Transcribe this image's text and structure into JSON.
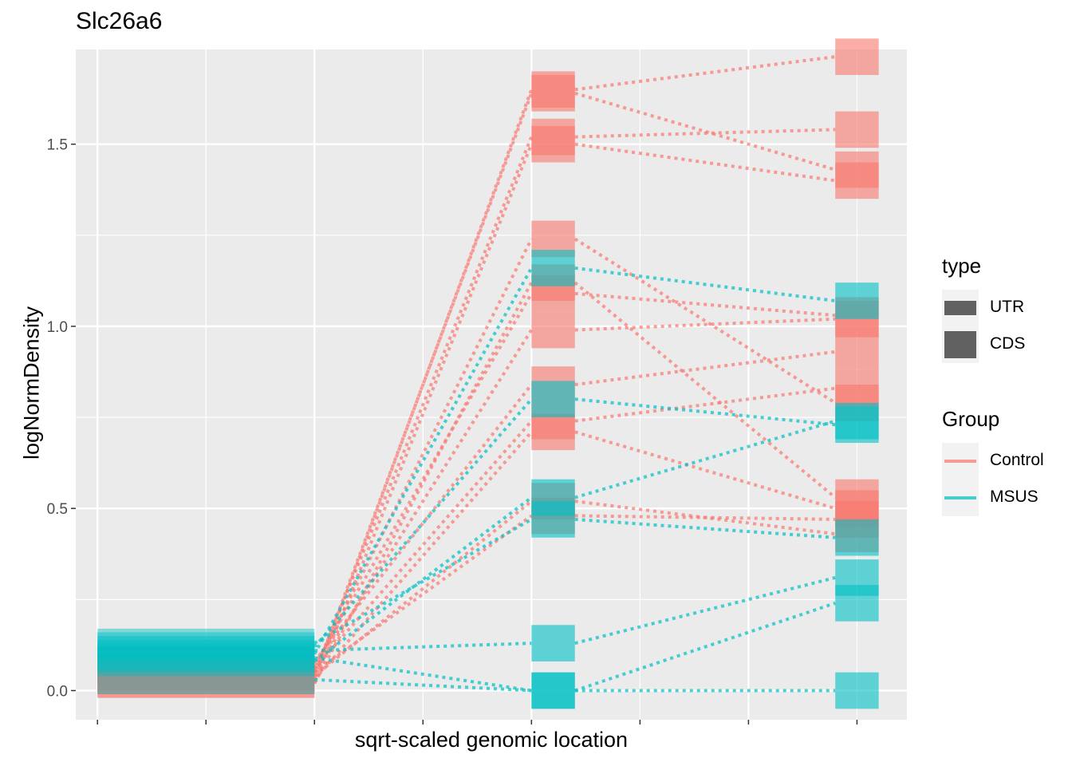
{
  "title": "Slc26a6",
  "chart_data": {
    "type": "line",
    "title": "Slc26a6",
    "xlabel": "sqrt-scaled genomic location",
    "ylabel": "logNormDensity",
    "x_tick_labels": [],
    "ylim": [
      -0.08,
      1.76
    ],
    "yticks": [
      0.0,
      0.5,
      1.0,
      1.5
    ],
    "ytick_labels": [
      "0.0",
      "0.5",
      "1.0",
      "1.5"
    ],
    "grid": true,
    "legend_placement": "right",
    "segments": [
      {
        "name": "UTR",
        "x_range": [
          0,
          1
        ],
        "type": "UTR"
      },
      {
        "name": "CDS",
        "x_range": [
          2,
          2.2
        ],
        "type": "CDS"
      },
      {
        "name": "UTR",
        "x_range": [
          3.4,
          3.6
        ],
        "type": "UTR"
      }
    ],
    "series": [
      {
        "group": "Control",
        "values": [
          0.03,
          1.65,
          1.74
        ]
      },
      {
        "group": "Control",
        "values": [
          0.05,
          1.52,
          1.54
        ]
      },
      {
        "group": "Control",
        "values": [
          0.02,
          1.5,
          1.4
        ]
      },
      {
        "group": "Control",
        "values": [
          0.04,
          1.64,
          1.43
        ]
      },
      {
        "group": "Control",
        "values": [
          0.06,
          1.24,
          0.79
        ]
      },
      {
        "group": "Control",
        "values": [
          0.07,
          1.09,
          1.03
        ]
      },
      {
        "group": "Control",
        "values": [
          0.05,
          0.99,
          1.02
        ]
      },
      {
        "group": "Control",
        "values": [
          0.08,
          0.84,
          0.93
        ]
      },
      {
        "group": "Control",
        "values": [
          0.03,
          0.71,
          0.5
        ]
      },
      {
        "group": "Control",
        "values": [
          0.06,
          0.74,
          0.83
        ]
      },
      {
        "group": "Control",
        "values": [
          0.04,
          0.52,
          0.43
        ]
      },
      {
        "group": "Control",
        "values": [
          0.02,
          1.12,
          0.53
        ]
      },
      {
        "group": "Control",
        "values": [
          0.05,
          0.48,
          0.47
        ]
      },
      {
        "group": "MSUS",
        "values": [
          0.1,
          1.16,
          1.07
        ]
      },
      {
        "group": "MSUS",
        "values": [
          0.12,
          0.8,
          0.73
        ]
      },
      {
        "group": "MSUS",
        "values": [
          0.08,
          0.53,
          0.74
        ]
      },
      {
        "group": "MSUS",
        "values": [
          0.13,
          0.47,
          0.42
        ]
      },
      {
        "group": "MSUS",
        "values": [
          0.11,
          0.13,
          0.31
        ]
      },
      {
        "group": "MSUS",
        "values": [
          0.03,
          0.0,
          0.24
        ]
      },
      {
        "group": "MSUS",
        "values": [
          0.09,
          0.0,
          0.0
        ]
      }
    ],
    "group_colors": {
      "Control": "#F8766D",
      "MSUS": "#00BFC4"
    }
  },
  "legend": {
    "type_title": "type",
    "type_items": [
      {
        "label": "UTR",
        "key": "utr"
      },
      {
        "label": "CDS",
        "key": "cds"
      }
    ],
    "group_title": "Group",
    "group_items": [
      {
        "label": "Control",
        "color": "#F8766D"
      },
      {
        "label": "MSUS",
        "color": "#00BFC4"
      }
    ]
  }
}
